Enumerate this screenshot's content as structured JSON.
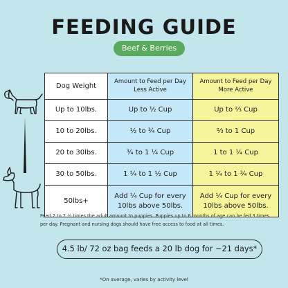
{
  "title": "FEEDING GUIDE",
  "flavor": "Beef & Berries",
  "table": {
    "headers": [
      "Dog Weight",
      "Amount to Feed per Day Less Active",
      "Amount to Feed per Day More Active"
    ],
    "rows": [
      [
        "Up to 10lbs.",
        "Up to ½ Cup",
        "Up to ⅔ Cup"
      ],
      [
        "10 to 20lbs.",
        "½ to ¾ Cup",
        "⅔ to 1 Cup"
      ],
      [
        "20 to 30lbs.",
        "¾ to 1 ¼ Cup",
        "1 to 1 ¼ Cup"
      ],
      [
        "30 to 50lbs.",
        "1 ¼ to 1 ½ Cup",
        "1 ¼ to 1 ¾ Cup"
      ],
      [
        "50lbs+",
        "Add ¼ Cup for every 10lbs above 50lbs.",
        "Add ¼ Cup for every 10lbs above 50lbs."
      ]
    ]
  },
  "note": "Feed 2 to 2 ½ times the adult amount to puppies. Puppies up to 6 months of age can be fed 3 times per day. Pregnant and nursing dogs should have free access to food at all times.",
  "bag_info": "4.5 lb/ 72 oz bag feeds a 20 lb dog for ~21 days*",
  "footnote": "*On average, varies by activity level",
  "colors": {
    "background": "#c3e6ec",
    "badge": "#5aaa5e",
    "less_active": "#c5e8f8",
    "more_active": "#f6f59c"
  },
  "icons": [
    "small-dog-icon",
    "size-wedge-icon",
    "large-dog-icon"
  ]
}
